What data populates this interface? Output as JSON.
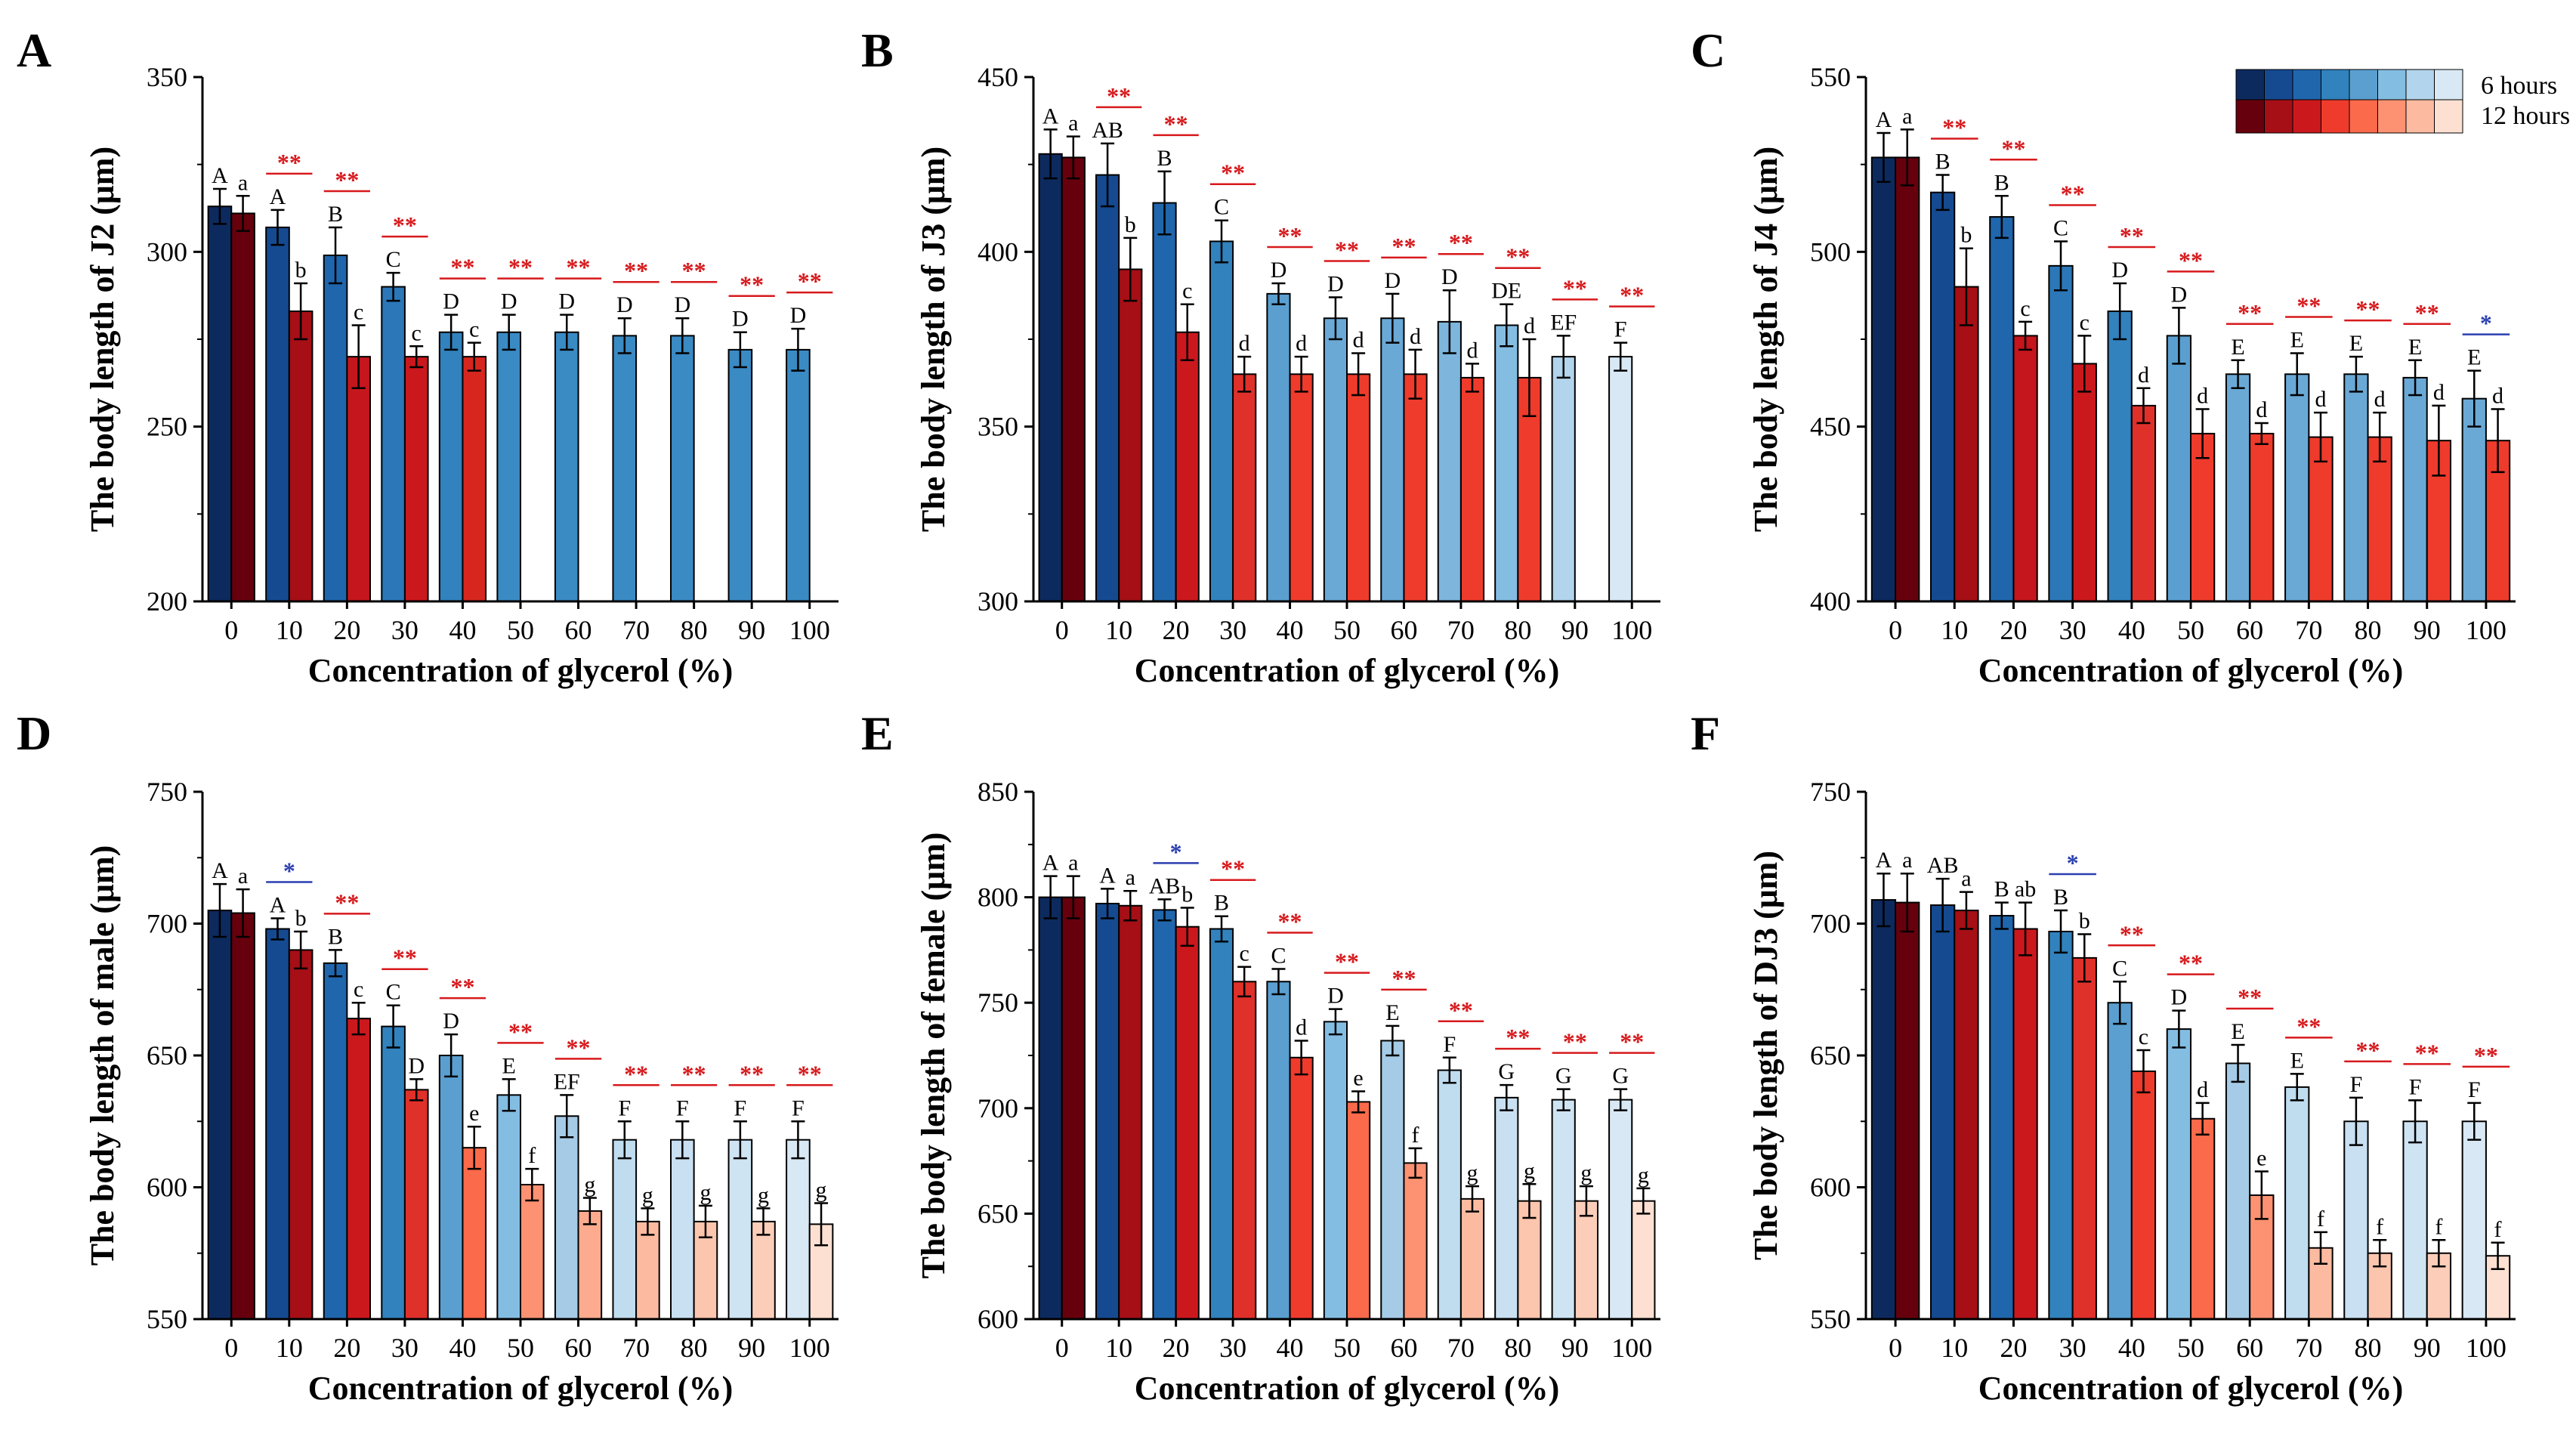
{
  "legend": {
    "labels": [
      "6 hours",
      "12 hours"
    ],
    "blue_scale": [
      "#0d2a5e",
      "#154a91",
      "#1f66ad",
      "#3182bd",
      "#5a9fd0",
      "#84bde2",
      "#b2d4ec",
      "#d8e8f5"
    ],
    "red_scale": [
      "#67000d",
      "#a50f15",
      "#cb181d",
      "#ef3b2c",
      "#fb6a4a",
      "#fc9272",
      "#fcbba1",
      "#fde0d2"
    ]
  },
  "colors": {
    "sig_red": "#d7191c",
    "sig_blue": "#2b3fb0",
    "axis": "#000000",
    "error_bar": "#000000"
  },
  "chart_data": [
    {
      "panel": "A",
      "type": "bar",
      "ylabel": "The body length of J2 (μm)",
      "xlabel": "Concentration of glycerol (%)",
      "categories": [
        "0",
        "10",
        "20",
        "30",
        "40",
        "50",
        "60",
        "70",
        "80",
        "90",
        "100"
      ],
      "ylim": [
        200,
        350
      ],
      "yticks": [
        200,
        250,
        300,
        350
      ],
      "series": [
        {
          "name": "6 hours",
          "values": [
            313,
            307,
            299,
            290,
            277,
            277,
            277,
            276,
            276,
            272,
            272
          ],
          "errors": [
            5,
            5,
            8,
            4,
            5,
            5,
            5,
            5,
            5,
            5,
            6
          ],
          "letters": [
            "A",
            "A",
            "B",
            "C",
            "D",
            "D",
            "D",
            "D",
            "D",
            "D",
            "D"
          ],
          "colors": [
            "#0d2a5e",
            "#154a91",
            "#1f66ad",
            "#2b77b8",
            "#3182bd",
            "#3a8ac4",
            "#3a8ac4",
            "#3a8ac4",
            "#3a8ac4",
            "#3a8ac4",
            "#3a8ac4"
          ]
        },
        {
          "name": "12 hours",
          "values": [
            311,
            283,
            270,
            270,
            270,
            null,
            null,
            null,
            null,
            null,
            null
          ],
          "errors": [
            5,
            8,
            9,
            3,
            4,
            null,
            null,
            null,
            null,
            null,
            null
          ],
          "letters": [
            "a",
            "b",
            "c",
            "c",
            "c",
            "",
            "",
            "",
            "",
            "",
            ""
          ],
          "colors": [
            "#67000d",
            "#a50f15",
            "#c4161c",
            "#cb181d",
            "#d7261e",
            "",
            "",
            "",
            "",
            "",
            ""
          ]
        }
      ],
      "significance": [
        "",
        "**",
        "**",
        "**",
        "**",
        "**",
        "**",
        "**",
        "**",
        "**",
        "**"
      ]
    },
    {
      "panel": "B",
      "type": "bar",
      "ylabel": "The body length of J3 (μm)",
      "xlabel": "Concentration of glycerol (%)",
      "categories": [
        "0",
        "10",
        "20",
        "30",
        "40",
        "50",
        "60",
        "70",
        "80",
        "90",
        "100"
      ],
      "ylim": [
        300,
        450
      ],
      "yticks": [
        300,
        350,
        400,
        450
      ],
      "series": [
        {
          "name": "6 hours",
          "values": [
            428,
            422,
            414,
            403,
            388,
            381,
            381,
            380,
            379,
            370,
            370
          ],
          "errors": [
            7,
            9,
            9,
            6,
            3,
            6,
            7,
            9,
            6,
            6,
            4
          ],
          "letters": [
            "A",
            "AB",
            "B",
            "C",
            "D",
            "D",
            "D",
            "D",
            "DE",
            "EF",
            "F"
          ],
          "colors": [
            "#0d2a5e",
            "#154a91",
            "#1f66ad",
            "#3182bd",
            "#5a9fd0",
            "#6aa9d6",
            "#6aa9d6",
            "#7db5dc",
            "#84bde2",
            "#b2d4ec",
            "#d8e8f5"
          ]
        },
        {
          "name": "12 hours",
          "values": [
            427,
            395,
            377,
            365,
            365,
            365,
            365,
            364,
            364,
            null,
            null
          ],
          "errors": [
            6,
            9,
            8,
            5,
            5,
            6,
            7,
            4,
            11,
            null,
            null
          ],
          "letters": [
            "a",
            "b",
            "c",
            "d",
            "d",
            "d",
            "d",
            "d",
            "d",
            "",
            ""
          ],
          "colors": [
            "#67000d",
            "#a50f15",
            "#cb181d",
            "#e0302a",
            "#ef3b2c",
            "#ef3b2c",
            "#ef3b2c",
            "#ef3b2c",
            "#ef3b2c",
            "",
            ""
          ]
        }
      ],
      "significance": [
        "",
        "**",
        "**",
        "**",
        "**",
        "**",
        "**",
        "**",
        "**",
        "**",
        "**"
      ]
    },
    {
      "panel": "C",
      "type": "bar",
      "ylabel": "The body length of J4 (μm)",
      "xlabel": "Concentration of glycerol (%)",
      "categories": [
        "0",
        "10",
        "20",
        "30",
        "40",
        "50",
        "60",
        "70",
        "80",
        "90",
        "100"
      ],
      "ylim": [
        400,
        550
      ],
      "yticks": [
        400,
        450,
        500,
        550
      ],
      "series": [
        {
          "name": "6 hours",
          "values": [
            527,
            517,
            510,
            496,
            483,
            476,
            465,
            465,
            465,
            464,
            458
          ],
          "errors": [
            7,
            5,
            6,
            7,
            8,
            8,
            4,
            6,
            5,
            5,
            8
          ],
          "letters": [
            "A",
            "B",
            "B",
            "C",
            "D",
            "D",
            "E",
            "E",
            "E",
            "E",
            "E"
          ],
          "colors": [
            "#0d2a5e",
            "#154a91",
            "#1f66ad",
            "#2b77b8",
            "#3182bd",
            "#5a9fd0",
            "#6aa9d6",
            "#6aa9d6",
            "#6aa9d6",
            "#6aa9d6",
            "#6aa9d6"
          ]
        },
        {
          "name": "12 hours",
          "values": [
            527,
            490,
            476,
            468,
            456,
            448,
            448,
            447,
            447,
            446,
            446
          ],
          "errors": [
            8,
            11,
            4,
            8,
            5,
            7,
            3,
            7,
            7,
            10,
            9
          ],
          "letters": [
            "a",
            "b",
            "c",
            "c",
            "d",
            "d",
            "d",
            "d",
            "d",
            "d",
            "d"
          ],
          "colors": [
            "#67000d",
            "#a50f15",
            "#c4161c",
            "#cb181d",
            "#e0302a",
            "#ef3b2c",
            "#ef3b2c",
            "#ef3b2c",
            "#ef3b2c",
            "#ef3b2c",
            "#ef3b2c"
          ]
        }
      ],
      "significance": [
        "",
        "**",
        "**",
        "**",
        "**",
        "**",
        "**",
        "**",
        "**",
        "**",
        "*"
      ],
      "significance_colors": [
        "",
        "red",
        "red",
        "red",
        "red",
        "red",
        "red",
        "red",
        "red",
        "red",
        "blue"
      ]
    },
    {
      "panel": "D",
      "type": "bar",
      "ylabel": "The body length of male (μm)",
      "xlabel": "Concentration of glycerol (%)",
      "categories": [
        "0",
        "10",
        "20",
        "30",
        "40",
        "50",
        "60",
        "70",
        "80",
        "90",
        "100"
      ],
      "ylim": [
        550,
        750
      ],
      "yticks": [
        550,
        600,
        650,
        700,
        750
      ],
      "series": [
        {
          "name": "6 hours",
          "values": [
            705,
            698,
            685,
            661,
            650,
            635,
            627,
            618,
            618,
            618,
            618
          ],
          "errors": [
            10,
            4,
            5,
            8,
            8,
            6,
            8,
            7,
            7,
            7,
            7
          ],
          "letters": [
            "A",
            "A",
            "B",
            "C",
            "D",
            "E",
            "EF",
            "F",
            "F",
            "F",
            "F"
          ],
          "colors": [
            "#0d2a5e",
            "#154a91",
            "#1f66ad",
            "#3182bd",
            "#5a9fd0",
            "#84bde2",
            "#a6cbe6",
            "#c0dcef",
            "#c8e0f1",
            "#cfe4f3",
            "#d8e8f5"
          ]
        },
        {
          "name": "12 hours",
          "values": [
            704,
            690,
            664,
            637,
            615,
            601,
            591,
            587,
            587,
            587,
            586
          ],
          "errors": [
            9,
            7,
            6,
            4,
            8,
            6,
            5,
            5,
            6,
            5,
            8
          ],
          "letters": [
            "a",
            "b",
            "c",
            "D",
            "e",
            "f",
            "g",
            "g",
            "g",
            "g",
            "g"
          ],
          "colors": [
            "#67000d",
            "#a50f15",
            "#cb181d",
            "#e0302a",
            "#fb6a4a",
            "#fc9272",
            "#fcab8f",
            "#fcbba1",
            "#fcc5ad",
            "#fccdb8",
            "#fde0d2"
          ]
        }
      ],
      "significance": [
        "",
        "*",
        "**",
        "**",
        "**",
        "**",
        "**",
        "**",
        "**",
        "**",
        "**"
      ],
      "significance_colors": [
        "",
        "blue",
        "red",
        "red",
        "red",
        "red",
        "red",
        "red",
        "red",
        "red",
        "red"
      ]
    },
    {
      "panel": "E",
      "type": "bar",
      "ylabel": "The body length of female (μm)",
      "xlabel": "Concentration of glycerol (%)",
      "categories": [
        "0",
        "10",
        "20",
        "30",
        "40",
        "50",
        "60",
        "70",
        "80",
        "90",
        "100"
      ],
      "ylim": [
        600,
        850
      ],
      "yticks": [
        600,
        650,
        700,
        750,
        800,
        850
      ],
      "series": [
        {
          "name": "6 hours",
          "values": [
            800,
            797,
            794,
            785,
            760,
            741,
            732,
            718,
            705,
            704,
            704
          ],
          "errors": [
            10,
            7,
            5,
            6,
            6,
            6,
            7,
            6,
            6,
            5,
            5
          ],
          "letters": [
            "A",
            "A",
            "AB",
            "B",
            "C",
            "D",
            "E",
            "F",
            "G",
            "G",
            "G"
          ],
          "colors": [
            "#0d2a5e",
            "#154a91",
            "#1f66ad",
            "#3182bd",
            "#5a9fd0",
            "#84bde2",
            "#a6cbe6",
            "#c0dcef",
            "#c8e0f1",
            "#cfe4f3",
            "#d8e8f5"
          ]
        },
        {
          "name": "12 hours",
          "values": [
            800,
            796,
            786,
            760,
            724,
            703,
            674,
            657,
            656,
            656,
            656
          ],
          "errors": [
            10,
            7,
            9,
            7,
            8,
            5,
            7,
            6,
            8,
            7,
            6
          ],
          "letters": [
            "a",
            "a",
            "b",
            "c",
            "d",
            "e",
            "f",
            "g",
            "g",
            "g",
            "g"
          ],
          "colors": [
            "#67000d",
            "#a50f15",
            "#cb181d",
            "#e0302a",
            "#ef3b2c",
            "#fb6a4a",
            "#fc9272",
            "#fcbba1",
            "#fcc5ad",
            "#fccdb8",
            "#fde0d2"
          ]
        }
      ],
      "significance": [
        "",
        "",
        "*",
        "**",
        "**",
        "**",
        "**",
        "**",
        "**",
        "**",
        "**"
      ],
      "significance_colors": [
        "",
        "",
        "blue",
        "red",
        "red",
        "red",
        "red",
        "red",
        "red",
        "red",
        "red"
      ]
    },
    {
      "panel": "F",
      "type": "bar",
      "ylabel": "The body length of DJ3 (μm)",
      "xlabel": "Concentration of glycerol (%)",
      "categories": [
        "0",
        "10",
        "20",
        "30",
        "40",
        "50",
        "60",
        "70",
        "80",
        "90",
        "100"
      ],
      "ylim": [
        550,
        750
      ],
      "yticks": [
        550,
        600,
        650,
        700,
        750
      ],
      "series": [
        {
          "name": "6 hours",
          "values": [
            709,
            707,
            703,
            697,
            670,
            660,
            647,
            638,
            625,
            625,
            625
          ],
          "errors": [
            10,
            10,
            5,
            8,
            8,
            7,
            7,
            5,
            9,
            8,
            7
          ],
          "letters": [
            "A",
            "AB",
            "B",
            "B",
            "C",
            "D",
            "E",
            "E",
            "F",
            "F",
            "F"
          ],
          "colors": [
            "#0d2a5e",
            "#154a91",
            "#1f66ad",
            "#3182bd",
            "#5a9fd0",
            "#84bde2",
            "#a6cbe6",
            "#c0dcef",
            "#c8e0f1",
            "#cfe4f3",
            "#d8e8f5"
          ]
        },
        {
          "name": "12 hours",
          "values": [
            708,
            705,
            698,
            687,
            644,
            626,
            597,
            577,
            575,
            575,
            574
          ],
          "errors": [
            11,
            7,
            10,
            9,
            8,
            6,
            9,
            6,
            5,
            5,
            5
          ],
          "letters": [
            "a",
            "a",
            "ab",
            "b",
            "c",
            "d",
            "e",
            "f",
            "f",
            "f",
            "f"
          ],
          "colors": [
            "#67000d",
            "#a50f15",
            "#cb181d",
            "#e0302a",
            "#ef3b2c",
            "#fb6a4a",
            "#fc9272",
            "#fcbba1",
            "#fcc5ad",
            "#fccdb8",
            "#fde0d2"
          ]
        }
      ],
      "significance": [
        "",
        "",
        "",
        "*",
        "**",
        "**",
        "**",
        "**",
        "**",
        "**",
        "**"
      ],
      "significance_colors": [
        "",
        "",
        "",
        "blue",
        "red",
        "red",
        "red",
        "red",
        "red",
        "red",
        "red"
      ]
    }
  ]
}
